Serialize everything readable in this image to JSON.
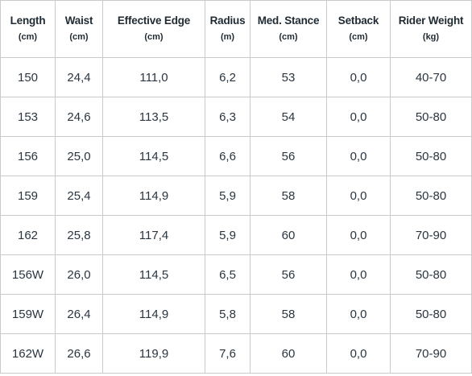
{
  "table": {
    "headers": [
      {
        "name": "Length",
        "unit": "(cm)"
      },
      {
        "name": "Waist",
        "unit": "(cm)"
      },
      {
        "name": "Effective Edge",
        "unit": "(cm)"
      },
      {
        "name": "Radius",
        "unit": "(m)"
      },
      {
        "name": "Med. Stance",
        "unit": "(cm)"
      },
      {
        "name": "Setback",
        "unit": "(cm)"
      },
      {
        "name": "Rider Weight",
        "unit": "(kg)"
      }
    ],
    "rows": [
      [
        "150",
        "24,4",
        "111,0",
        "6,2",
        "53",
        "0,0",
        "40-70"
      ],
      [
        "153",
        "24,6",
        "113,5",
        "6,3",
        "54",
        "0,0",
        "50-80"
      ],
      [
        "156",
        "25,0",
        "114,5",
        "6,6",
        "56",
        "0,0",
        "50-80"
      ],
      [
        "159",
        "25,4",
        "114,9",
        "5,9",
        "58",
        "0,0",
        "50-80"
      ],
      [
        "162",
        "25,8",
        "117,4",
        "5,9",
        "60",
        "0,0",
        "70-90"
      ],
      [
        "156W",
        "26,0",
        "114,5",
        "6,5",
        "56",
        "0,0",
        "50-80"
      ],
      [
        "159W",
        "26,4",
        "114,9",
        "5,8",
        "58",
        "0,0",
        "50-80"
      ],
      [
        "162W",
        "26,6",
        "119,9",
        "7,6",
        "60",
        "0,0",
        "70-90"
      ]
    ]
  }
}
